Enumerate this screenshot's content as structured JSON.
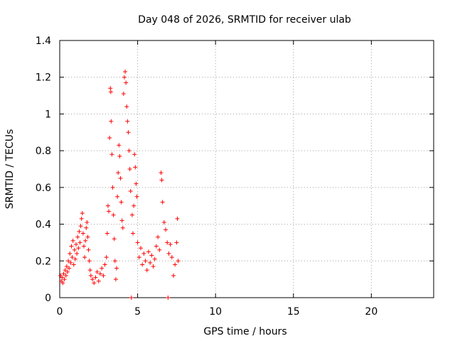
{
  "chart_data": {
    "type": "scatter",
    "title": "Day 048 of 2026, SRMTID for receiver ulab",
    "xlabel": "GPS time / hours",
    "ylabel": "SRMTID / TECUs",
    "xlim": [
      0,
      24
    ],
    "ylim": [
      0,
      1.4
    ],
    "xticks": [
      0,
      5,
      10,
      15,
      20
    ],
    "xtick_labels": [
      "0",
      "5",
      "10",
      "15",
      "20"
    ],
    "yticks": [
      0,
      0.2,
      0.4,
      0.6,
      0.8,
      1,
      1.2,
      1.4
    ],
    "ytick_labels": [
      "0",
      "0.2",
      "0.4",
      "0.6",
      "0.8",
      "1",
      "1.2",
      "1.4"
    ],
    "grid": true,
    "series": [
      {
        "name": "SRMTID",
        "marker": "plus",
        "color": "#ff0000",
        "points": [
          [
            0.05,
            0.12
          ],
          [
            0.1,
            0.09
          ],
          [
            0.15,
            0.11
          ],
          [
            0.2,
            0.08
          ],
          [
            0.25,
            0.13
          ],
          [
            0.3,
            0.1
          ],
          [
            0.35,
            0.15
          ],
          [
            0.4,
            0.12
          ],
          [
            0.45,
            0.17
          ],
          [
            0.5,
            0.14
          ],
          [
            0.55,
            0.2
          ],
          [
            0.6,
            0.16
          ],
          [
            0.65,
            0.24
          ],
          [
            0.7,
            0.19
          ],
          [
            0.75,
            0.28
          ],
          [
            0.8,
            0.22
          ],
          [
            0.85,
            0.31
          ],
          [
            0.9,
            0.18
          ],
          [
            0.95,
            0.26
          ],
          [
            1.0,
            0.21
          ],
          [
            1.05,
            0.29
          ],
          [
            1.1,
            0.24
          ],
          [
            1.15,
            0.33
          ],
          [
            1.2,
            0.27
          ],
          [
            1.25,
            0.36
          ],
          [
            1.3,
            0.3
          ],
          [
            1.35,
            0.39
          ],
          [
            1.4,
            0.43
          ],
          [
            1.45,
            0.46
          ],
          [
            1.5,
            0.35
          ],
          [
            1.55,
            0.28
          ],
          [
            1.6,
            0.22
          ],
          [
            1.65,
            0.31
          ],
          [
            1.7,
            0.38
          ],
          [
            1.75,
            0.41
          ],
          [
            1.8,
            0.33
          ],
          [
            1.85,
            0.26
          ],
          [
            1.9,
            0.2
          ],
          [
            1.95,
            0.15
          ],
          [
            2.0,
            0.12
          ],
          [
            2.1,
            0.1
          ],
          [
            2.2,
            0.08
          ],
          [
            2.3,
            0.11
          ],
          [
            2.4,
            0.14
          ],
          [
            2.5,
            0.09
          ],
          [
            2.6,
            0.13
          ],
          [
            2.7,
            0.16
          ],
          [
            2.8,
            0.12
          ],
          [
            2.9,
            0.18
          ],
          [
            3.0,
            0.22
          ],
          [
            3.05,
            0.35
          ],
          [
            3.1,
            0.5
          ],
          [
            3.15,
            0.47
          ],
          [
            3.2,
            0.87
          ],
          [
            3.25,
            1.14
          ],
          [
            3.28,
            1.12
          ],
          [
            3.3,
            0.96
          ],
          [
            3.35,
            0.78
          ],
          [
            3.4,
            0.6
          ],
          [
            3.45,
            0.45
          ],
          [
            3.5,
            0.32
          ],
          [
            3.55,
            0.2
          ],
          [
            3.6,
            0.1
          ],
          [
            3.65,
            0.16
          ],
          [
            3.7,
            0.55
          ],
          [
            3.75,
            0.68
          ],
          [
            3.8,
            0.83
          ],
          [
            3.85,
            0.77
          ],
          [
            3.9,
            0.65
          ],
          [
            3.95,
            0.52
          ],
          [
            4.0,
            0.42
          ],
          [
            4.05,
            0.38
          ],
          [
            4.1,
            1.11
          ],
          [
            4.15,
            1.2
          ],
          [
            4.2,
            1.23
          ],
          [
            4.25,
            1.17
          ],
          [
            4.3,
            1.04
          ],
          [
            4.35,
            0.96
          ],
          [
            4.4,
            0.9
          ],
          [
            4.45,
            0.8
          ],
          [
            4.5,
            0.7
          ],
          [
            4.55,
            0.58
          ],
          [
            4.6,
            0.0
          ],
          [
            4.65,
            0.45
          ],
          [
            4.7,
            0.35
          ],
          [
            4.75,
            0.5
          ],
          [
            4.8,
            0.78
          ],
          [
            4.85,
            0.71
          ],
          [
            4.9,
            0.62
          ],
          [
            4.95,
            0.55
          ],
          [
            5.0,
            0.3
          ],
          [
            5.1,
            0.22
          ],
          [
            5.2,
            0.27
          ],
          [
            5.3,
            0.18
          ],
          [
            5.4,
            0.24
          ],
          [
            5.5,
            0.2
          ],
          [
            5.6,
            0.15
          ],
          [
            5.7,
            0.25
          ],
          [
            5.8,
            0.19
          ],
          [
            5.9,
            0.23
          ],
          [
            6.0,
            0.17
          ],
          [
            6.1,
            0.21
          ],
          [
            6.2,
            0.28
          ],
          [
            6.3,
            0.33
          ],
          [
            6.4,
            0.26
          ],
          [
            6.5,
            0.68
          ],
          [
            6.55,
            0.64
          ],
          [
            6.6,
            0.52
          ],
          [
            6.7,
            0.41
          ],
          [
            6.8,
            0.37
          ],
          [
            6.9,
            0.3
          ],
          [
            6.95,
            0.0
          ],
          [
            7.0,
            0.24
          ],
          [
            7.1,
            0.29
          ],
          [
            7.2,
            0.22
          ],
          [
            7.3,
            0.12
          ],
          [
            7.4,
            0.18
          ],
          [
            7.5,
            0.3
          ],
          [
            7.55,
            0.43
          ],
          [
            7.6,
            0.2
          ]
        ]
      }
    ]
  }
}
